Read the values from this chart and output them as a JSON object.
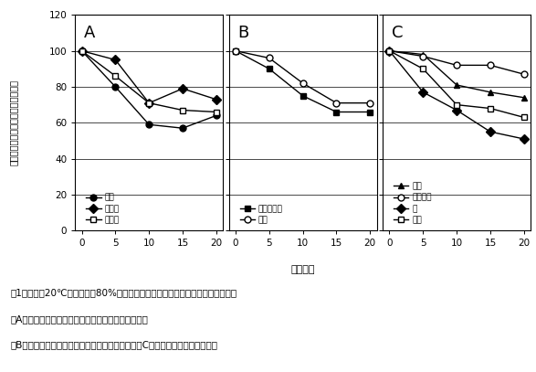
{
  "x": [
    0,
    5,
    10,
    15,
    20
  ],
  "panel_A": {
    "label": "A",
    "series": [
      {
        "name": "陋奈",
        "values": [
          100,
          80,
          59,
          57,
          64
        ],
        "marker": "o",
        "fillstyle": "full"
      },
      {
        "name": "つがる",
        "values": [
          100,
          95,
          71,
          79,
          73
        ],
        "marker": "D",
        "fillstyle": "full"
      },
      {
        "name": "さんさ",
        "values": [
          100,
          86,
          71,
          67,
          66
        ],
        "marker": "s",
        "fillstyle": "none"
      }
    ]
  },
  "panel_B": {
    "label": "B",
    "series": [
      {
        "name": "こうたろう",
        "values": [
          100,
          90,
          75,
          66,
          66
        ],
        "marker": "s",
        "fillstyle": "full"
      },
      {
        "name": "紅玉",
        "values": [
          100,
          96,
          82,
          71,
          71
        ],
        "marker": "o",
        "fillstyle": "none"
      }
    ]
  },
  "panel_C": {
    "label": "C",
    "series": [
      {
        "name": "国光",
        "values": [
          100,
          98,
          81,
          77,
          74
        ],
        "marker": "^",
        "fillstyle": "full"
      },
      {
        "name": "きたろう",
        "values": [
          100,
          97,
          92,
          92,
          87
        ],
        "marker": "o",
        "fillstyle": "none"
      },
      {
        "name": "恵",
        "values": [
          100,
          77,
          67,
          55,
          51
        ],
        "marker": "D",
        "fillstyle": "full"
      },
      {
        "name": "北斗",
        "values": [
          100,
          90,
          70,
          68,
          63
        ],
        "marker": "s",
        "fillstyle": "none"
      }
    ]
  },
  "ylabel": "収穫時を基準とした相対硬度（％）",
  "xlabel": "谯蔵日数",
  "ylim": [
    0,
    120
  ],
  "yticks": [
    0,
    20,
    40,
    60,
    80,
    100,
    120
  ],
  "xticks": [
    0,
    5,
    10,
    15,
    20
  ],
  "caption_line1": "図1　収穫後20℃、相対湿度80%で谯蔵したリンゴ果実の谯蔵中の相対硬度変化",
  "caption_line2": "（A）谯蔵１０日目までに急激な軟化がみられる品種",
  "caption_line3": "（B）１５日目までなだらかに軟化する品種　　（C）２０日間軟化が続く品種"
}
